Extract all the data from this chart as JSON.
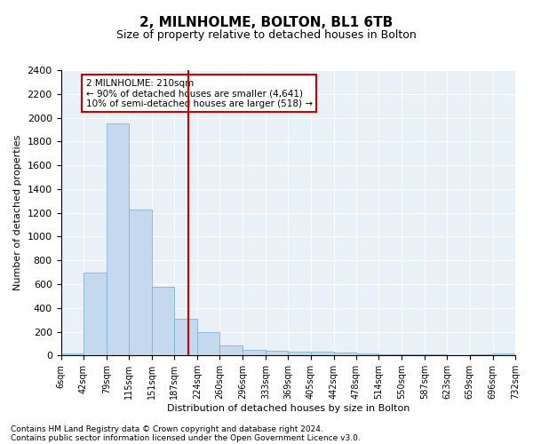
{
  "title1": "2, MILNHOLME, BOLTON, BL1 6TB",
  "title2": "Size of property relative to detached houses in Bolton",
  "xlabel": "Distribution of detached houses by size in Bolton",
  "ylabel": "Number of detached properties",
  "footnote1": "Contains HM Land Registry data © Crown copyright and database right 2024.",
  "footnote2": "Contains public sector information licensed under the Open Government Licence v3.0.",
  "annotation_line1": "2 MILNHOLME: 210sqm",
  "annotation_line2": "← 90% of detached houses are smaller (4,641)",
  "annotation_line3": "10% of semi-detached houses are larger (518) →",
  "bar_color": "#c5d9ee",
  "bar_edge_color": "#7fb3d3",
  "ref_line_color": "#cc0000",
  "ref_line_x": 210,
  "bin_edges": [
    6,
    42,
    79,
    115,
    151,
    187,
    224,
    260,
    296,
    333,
    369,
    405,
    442,
    478,
    514,
    550,
    587,
    623,
    659,
    696,
    732
  ],
  "bar_heights": [
    15,
    700,
    1950,
    1225,
    575,
    310,
    200,
    85,
    45,
    40,
    35,
    30,
    25,
    20,
    10,
    10,
    10,
    5,
    10,
    20
  ],
  "ylim": [
    0,
    2400
  ],
  "yticks": [
    0,
    200,
    400,
    600,
    800,
    1000,
    1200,
    1400,
    1600,
    1800,
    2000,
    2200,
    2400
  ],
  "bg_color": "#e8f0f8",
  "grid_color": "#ffffff",
  "title1_fontsize": 11,
  "title2_fontsize": 9,
  "ylabel_fontsize": 8,
  "xlabel_fontsize": 8,
  "ytick_fontsize": 8,
  "xtick_fontsize": 7,
  "footnote_fontsize": 6.5
}
